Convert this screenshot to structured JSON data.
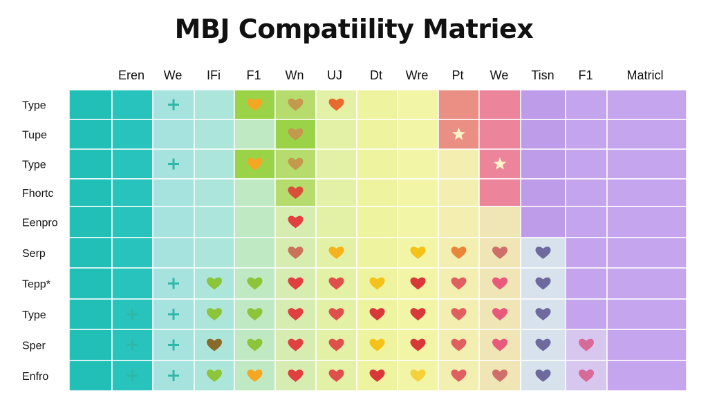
{
  "title": "MBJ Compatiility Matriex",
  "chart_data": {
    "type": "heatmap",
    "columns": [
      "Eren",
      "We",
      "IFi",
      "F1",
      "Wn",
      "UJ",
      "Dt",
      "Wre",
      "Pt",
      "We",
      "Tisn",
      "F1",
      "Matricl"
    ],
    "rows": [
      "Type",
      "Tupe",
      "Type",
      "Fhortc",
      "Eenpro",
      "Serp",
      "Tepp*",
      "Type",
      "Sper",
      "Enfro"
    ],
    "column_colors": [
      "#27c3bc",
      "#a6e3df",
      "#ace6db",
      "#bfe9c2",
      "#d6ecb1",
      "#e3f1a6",
      "#eef3a0",
      "#f2f4a6",
      "#f2efb0",
      "#f0e5b4",
      "#d8e2ec",
      "#d7c7ee",
      "#c5a6ee"
    ],
    "highlights": [
      {
        "row": 0,
        "col": 3,
        "color": "#9bd348"
      },
      {
        "row": 0,
        "col": 4,
        "color": "#b6dc6d"
      },
      {
        "row": 1,
        "col": 4,
        "color": "#9bd348"
      },
      {
        "row": 2,
        "col": 3,
        "color": "#9bd348"
      },
      {
        "row": 2,
        "col": 4,
        "color": "#b6dc6d"
      },
      {
        "row": 3,
        "col": 4,
        "color": "#b6dc6d"
      },
      {
        "row": 0,
        "col": 8,
        "color": "#ea8f83"
      },
      {
        "row": 1,
        "col": 8,
        "color": "#ea8f83"
      },
      {
        "row": 0,
        "col": 9,
        "color": "#ec849c"
      },
      {
        "row": 1,
        "col": 9,
        "color": "#ec849c"
      },
      {
        "row": 2,
        "col": 9,
        "color": "#ec849c"
      },
      {
        "row": 3,
        "col": 9,
        "color": "#ec849c"
      },
      {
        "row": 0,
        "col": 10,
        "color": "#bf9ce9"
      },
      {
        "row": 1,
        "col": 10,
        "color": "#bf9ce9"
      },
      {
        "row": 2,
        "col": 10,
        "color": "#bf9ce9"
      },
      {
        "row": 3,
        "col": 10,
        "color": "#bf9ce9"
      },
      {
        "row": 4,
        "col": 10,
        "color": "#bf9ce9"
      },
      {
        "row": 0,
        "col": 11,
        "color": "#c4a4ec"
      },
      {
        "row": 1,
        "col": 11,
        "color": "#c4a4ec"
      },
      {
        "row": 2,
        "col": 11,
        "color": "#c4a4ec"
      },
      {
        "row": 3,
        "col": 11,
        "color": "#c4a4ec"
      },
      {
        "row": 4,
        "col": 11,
        "color": "#c4a4ec"
      },
      {
        "row": 5,
        "col": 11,
        "color": "#c4a4ec"
      },
      {
        "row": 6,
        "col": 11,
        "color": "#c4a4ec"
      },
      {
        "row": 7,
        "col": 11,
        "color": "#c4a4ec"
      }
    ],
    "markers": [
      {
        "row": 0,
        "col": 1,
        "symbol": "plus",
        "color": "#2fb8a8"
      },
      {
        "row": 0,
        "col": 3,
        "symbol": "heart",
        "color": "#f5a623"
      },
      {
        "row": 0,
        "col": 4,
        "symbol": "heart",
        "color": "#c39a4d"
      },
      {
        "row": 0,
        "col": 5,
        "symbol": "heart",
        "color": "#e86a2e"
      },
      {
        "row": 1,
        "col": 4,
        "symbol": "heart",
        "color": "#c39a4d"
      },
      {
        "row": 1,
        "col": 8,
        "symbol": "star",
        "color": "#fff4c8"
      },
      {
        "row": 2,
        "col": 1,
        "symbol": "plus",
        "color": "#2fb8a8"
      },
      {
        "row": 2,
        "col": 3,
        "symbol": "heart",
        "color": "#f5a623"
      },
      {
        "row": 2,
        "col": 4,
        "symbol": "heart",
        "color": "#c39a4d"
      },
      {
        "row": 2,
        "col": 9,
        "symbol": "star",
        "color": "#fff4c8"
      },
      {
        "row": 3,
        "col": 4,
        "symbol": "heart",
        "color": "#d9503a"
      },
      {
        "row": 4,
        "col": 4,
        "symbol": "heart",
        "color": "#e04040"
      },
      {
        "row": 5,
        "col": 4,
        "symbol": "heart",
        "color": "#c9735a"
      },
      {
        "row": 5,
        "col": 5,
        "symbol": "heart",
        "color": "#f5b21a"
      },
      {
        "row": 5,
        "col": 7,
        "symbol": "heart",
        "color": "#f5c21a"
      },
      {
        "row": 5,
        "col": 8,
        "symbol": "heart",
        "color": "#e8873a"
      },
      {
        "row": 5,
        "col": 9,
        "symbol": "heart",
        "color": "#cf6f6a"
      },
      {
        "row": 5,
        "col": 10,
        "symbol": "heart",
        "color": "#6f6a9e"
      },
      {
        "row": 6,
        "col": 1,
        "symbol": "plus",
        "color": "#2fb8a8"
      },
      {
        "row": 6,
        "col": 2,
        "symbol": "heart",
        "color": "#8cc43a"
      },
      {
        "row": 6,
        "col": 3,
        "symbol": "heart",
        "color": "#8cc43a"
      },
      {
        "row": 6,
        "col": 4,
        "symbol": "heart",
        "color": "#e04040"
      },
      {
        "row": 6,
        "col": 5,
        "symbol": "heart",
        "color": "#e0504a"
      },
      {
        "row": 6,
        "col": 6,
        "symbol": "heart",
        "color": "#f5c21a"
      },
      {
        "row": 6,
        "col": 7,
        "symbol": "heart",
        "color": "#d93838"
      },
      {
        "row": 6,
        "col": 8,
        "symbol": "heart",
        "color": "#e06060"
      },
      {
        "row": 6,
        "col": 9,
        "symbol": "heart",
        "color": "#e85a7a"
      },
      {
        "row": 6,
        "col": 10,
        "symbol": "heart",
        "color": "#6f6a9e"
      },
      {
        "row": 7,
        "col": 0,
        "symbol": "plus",
        "color": "#2fb8a8"
      },
      {
        "row": 7,
        "col": 1,
        "symbol": "plus",
        "color": "#2fb8a8"
      },
      {
        "row": 7,
        "col": 2,
        "symbol": "heart",
        "color": "#8cc43a"
      },
      {
        "row": 7,
        "col": 3,
        "symbol": "heart",
        "color": "#8cc43a"
      },
      {
        "row": 7,
        "col": 4,
        "symbol": "heart",
        "color": "#e04040"
      },
      {
        "row": 7,
        "col": 5,
        "symbol": "heart",
        "color": "#e0504a"
      },
      {
        "row": 7,
        "col": 6,
        "symbol": "heart",
        "color": "#d93838"
      },
      {
        "row": 7,
        "col": 7,
        "symbol": "heart",
        "color": "#d93838"
      },
      {
        "row": 7,
        "col": 8,
        "symbol": "heart",
        "color": "#e06060"
      },
      {
        "row": 7,
        "col": 9,
        "symbol": "heart",
        "color": "#e85a7a"
      },
      {
        "row": 7,
        "col": 10,
        "symbol": "heart",
        "color": "#6f6a9e"
      },
      {
        "row": 8,
        "col": 0,
        "symbol": "plus",
        "color": "#2fb8a8"
      },
      {
        "row": 8,
        "col": 1,
        "symbol": "plus",
        "color": "#2fb8a8"
      },
      {
        "row": 8,
        "col": 2,
        "symbol": "heart",
        "color": "#8a6a2a"
      },
      {
        "row": 8,
        "col": 3,
        "symbol": "heart",
        "color": "#8cc43a"
      },
      {
        "row": 8,
        "col": 4,
        "symbol": "heart",
        "color": "#e04040"
      },
      {
        "row": 8,
        "col": 5,
        "symbol": "heart",
        "color": "#e0504a"
      },
      {
        "row": 8,
        "col": 6,
        "symbol": "heart",
        "color": "#f5c21a"
      },
      {
        "row": 8,
        "col": 7,
        "symbol": "heart",
        "color": "#d93838"
      },
      {
        "row": 8,
        "col": 8,
        "symbol": "heart",
        "color": "#e06060"
      },
      {
        "row": 8,
        "col": 9,
        "symbol": "heart",
        "color": "#e85a7a"
      },
      {
        "row": 8,
        "col": 10,
        "symbol": "heart",
        "color": "#6f6a9e"
      },
      {
        "row": 8,
        "col": 11,
        "symbol": "heart",
        "color": "#d86a9a"
      },
      {
        "row": 9,
        "col": 0,
        "symbol": "plus",
        "color": "#2fb8a8"
      },
      {
        "row": 9,
        "col": 1,
        "symbol": "plus",
        "color": "#2fb8a8"
      },
      {
        "row": 9,
        "col": 2,
        "symbol": "heart",
        "color": "#8cc43a"
      },
      {
        "row": 9,
        "col": 3,
        "symbol": "heart",
        "color": "#f5a623"
      },
      {
        "row": 9,
        "col": 4,
        "symbol": "heart",
        "color": "#e04040"
      },
      {
        "row": 9,
        "col": 5,
        "symbol": "heart",
        "color": "#e0504a"
      },
      {
        "row": 9,
        "col": 6,
        "symbol": "heart",
        "color": "#d93838"
      },
      {
        "row": 9,
        "col": 7,
        "symbol": "heart",
        "color": "#f5d23a"
      },
      {
        "row": 9,
        "col": 8,
        "symbol": "heart",
        "color": "#e06060"
      },
      {
        "row": 9,
        "col": 9,
        "symbol": "heart",
        "color": "#cf6f6a"
      },
      {
        "row": 9,
        "col": 10,
        "symbol": "heart",
        "color": "#6f6a9e"
      },
      {
        "row": 9,
        "col": 11,
        "symbol": "heart",
        "color": "#d86a9a"
      }
    ]
  }
}
